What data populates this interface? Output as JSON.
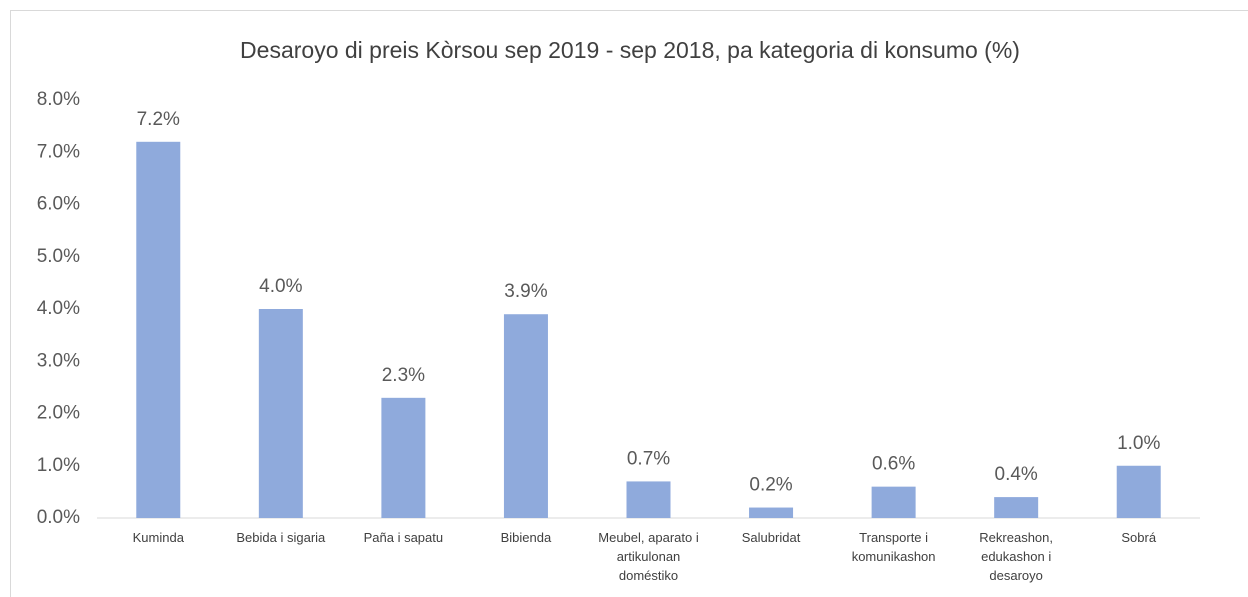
{
  "chart_data": {
    "type": "bar",
    "title": "Desaroyo di preis Kòrsou sep 2019 - sep 2018, pa kategoria di konsumo (%)",
    "categories": [
      "Kuminda",
      "Bebida i sigaria",
      "Paña i sapatu",
      "Bibienda",
      "Meubel, aparato i artikulonan doméstiko",
      "Salubridat",
      "Transporte i komunikashon",
      "Rekreashon, edukashon i desaroyo",
      "Sobrá"
    ],
    "values": [
      7.2,
      4.0,
      2.3,
      3.9,
      0.7,
      0.2,
      0.6,
      0.4,
      1.0
    ],
    "value_labels": [
      "7.2%",
      "4.0%",
      "2.3%",
      "3.9%",
      "0.7%",
      "0.2%",
      "0.6%",
      "0.4%",
      "1.0%"
    ],
    "color": "#8faadc",
    "ylim": [
      0,
      8
    ],
    "yticks": [
      {
        "value": 0,
        "label": "0.0%"
      },
      {
        "value": 1,
        "label": "1.0%"
      },
      {
        "value": 2,
        "label": "2.0%"
      },
      {
        "value": 3,
        "label": "3.0%"
      },
      {
        "value": 4,
        "label": "4.0%"
      },
      {
        "value": 5,
        "label": "5.0%"
      },
      {
        "value": 6,
        "label": "6.0%"
      },
      {
        "value": 7,
        "label": "7.0%"
      },
      {
        "value": 8,
        "label": "8.0%"
      }
    ],
    "grid": false
  }
}
